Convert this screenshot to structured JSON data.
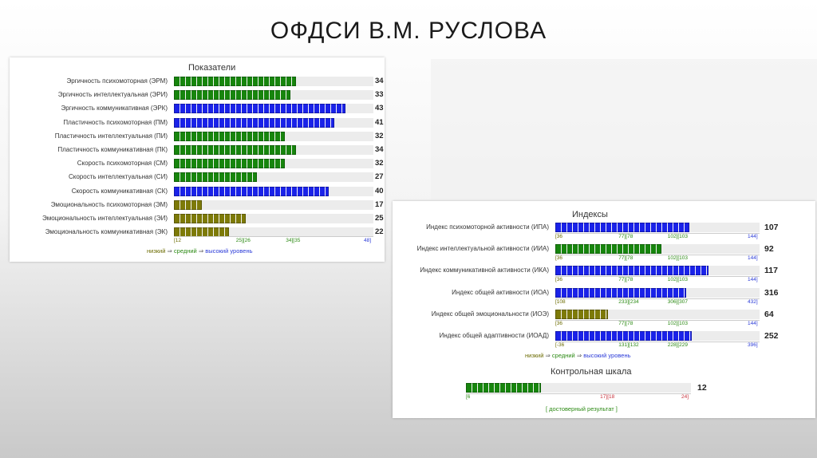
{
  "slide": {
    "title": "ОФДСИ В.М. РУСЛОВА"
  },
  "colors": {
    "low": "#7d7a08",
    "mid": "#17850d",
    "high": "#1a22e8",
    "track": "#ececec"
  },
  "chart_data": [
    {
      "type": "bar",
      "orientation": "horizontal",
      "title": "Показатели",
      "xlim": [
        12,
        48
      ],
      "scale_ticks": [
        {
          "text": "[12",
          "class": "low",
          "value": 12
        },
        {
          "text": "25][26",
          "class": "mid",
          "value": 25.5
        },
        {
          "text": "34][35",
          "class": "mid",
          "value": 34.5
        },
        {
          "text": "48]",
          "class": "high",
          "value": 48
        }
      ],
      "categories": [
        "Эргичность психомоторная (ЭРМ)",
        "Эргичность интеллектуальная (ЭРИ)",
        "Эргичность коммуникативная (ЭРК)",
        "Пластичность психомоторная (ПМ)",
        "Пластичность интеллектуальная (ПИ)",
        "Пластичность коммуникативная (ПК)",
        "Скорость психомоторная (СМ)",
        "Скорость интеллектуальная (СИ)",
        "Скорость коммуникативная (СК)",
        "Эмоциональность психомоторная (ЭМ)",
        "Эмоциональность интеллектуальная (ЭИ)",
        "Эмоциональность коммуникативная (ЭК)"
      ],
      "values": [
        34,
        33,
        43,
        41,
        32,
        34,
        32,
        27,
        40,
        17,
        25,
        22
      ],
      "levels": [
        "mid",
        "mid",
        "high",
        "high",
        "mid",
        "mid",
        "mid",
        "mid",
        "high",
        "low",
        "low",
        "low"
      ],
      "legend": {
        "low": "низкий",
        "mid": "средний",
        "high": "высокий уровень",
        "arrow": "⇒"
      }
    },
    {
      "type": "bar",
      "orientation": "horizontal",
      "title": "Индексы",
      "categories": [
        "Индекс психомоторной активности (ИПА)",
        "Индекс интеллектуальной активности (ИИА)",
        "Индекс коммуникативной активности (ИКА)",
        "Индекс общей активности (ИОА)",
        "Индекс общей эмоциональности (ИОЭ)",
        "Индекс общей адаптивности (ИОАД)"
      ],
      "values": [
        107,
        92,
        117,
        316,
        64,
        252
      ],
      "levels": [
        "high",
        "mid",
        "high",
        "high",
        "low",
        "high"
      ],
      "ranges": [
        [
          36,
          144
        ],
        [
          36,
          144
        ],
        [
          36,
          144
        ],
        [
          108,
          432
        ],
        [
          36,
          144
        ],
        [
          -36,
          396
        ]
      ],
      "scale_ticks": [
        [
          {
            "text": "[36",
            "class": "low"
          },
          {
            "text": "77][78",
            "class": "mid"
          },
          {
            "text": "102][103",
            "class": "mid"
          },
          {
            "text": "144]",
            "class": "high"
          }
        ],
        [
          {
            "text": "[36",
            "class": "low"
          },
          {
            "text": "77][78",
            "class": "mid"
          },
          {
            "text": "102][103",
            "class": "mid"
          },
          {
            "text": "144]",
            "class": "high"
          }
        ],
        [
          {
            "text": "[36",
            "class": "low"
          },
          {
            "text": "77][78",
            "class": "mid"
          },
          {
            "text": "102][103",
            "class": "mid"
          },
          {
            "text": "144]",
            "class": "high"
          }
        ],
        [
          {
            "text": "[108",
            "class": "low"
          },
          {
            "text": "233][234",
            "class": "mid"
          },
          {
            "text": "306][307",
            "class": "mid"
          },
          {
            "text": "432]",
            "class": "high"
          }
        ],
        [
          {
            "text": "[36",
            "class": "low"
          },
          {
            "text": "77][78",
            "class": "mid"
          },
          {
            "text": "102][103",
            "class": "mid"
          },
          {
            "text": "144]",
            "class": "high"
          }
        ],
        [
          {
            "text": "[-36",
            "class": "low"
          },
          {
            "text": "131][132",
            "class": "mid"
          },
          {
            "text": "228][229",
            "class": "mid"
          },
          {
            "text": "396]",
            "class": "high"
          }
        ]
      ],
      "legend": {
        "low": "низкий",
        "mid": "средний",
        "high": "высокий уровень",
        "arrow": "⇒"
      }
    },
    {
      "type": "bar",
      "orientation": "horizontal",
      "title": "Контрольная шкала",
      "xlim": [
        6,
        24
      ],
      "values": [
        12
      ],
      "levels": [
        "mid"
      ],
      "scale_ticks": [
        {
          "text": "[6",
          "class": "mid",
          "value": 6
        },
        {
          "text": "17][18",
          "class": "red",
          "value": 17.5
        },
        {
          "text": "24]",
          "class": "red",
          "value": 24
        }
      ],
      "verdict": "[ достоверный результат ]"
    }
  ]
}
